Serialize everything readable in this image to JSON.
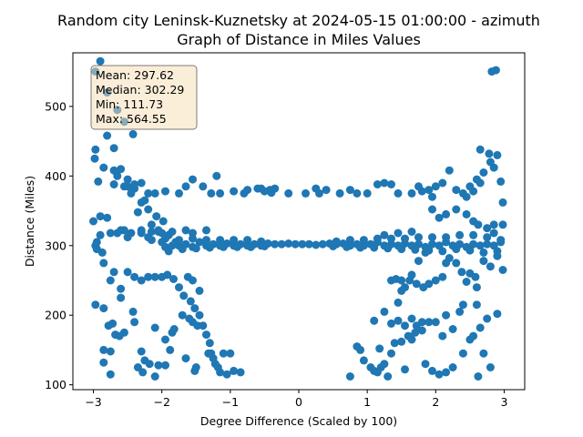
{
  "chart_data": {
    "type": "scatter",
    "title_line1": "Random city Leninsk-Kuznetsky at 2024-05-15 01:00:00  - azimuth",
    "title_line2": "Graph of Distance in Miles Values",
    "xlabel": "Degree Difference (Scaled by 100)",
    "ylabel": "Distance (Miles)",
    "xlim": [
      -3.3,
      3.3
    ],
    "ylim": [
      93,
      577
    ],
    "xticks": [
      -3,
      -2,
      -1,
      0,
      1,
      2,
      3
    ],
    "yticks": [
      100,
      200,
      300,
      400,
      500
    ],
    "grid": false,
    "marker_color": "#1f77b4",
    "stats": {
      "mean": "Mean: 297.62",
      "median": "Median: 302.29",
      "min": "Min: 111.73",
      "max": "Max: 564.55"
    },
    "points": [
      [
        -2.9,
        565
      ],
      [
        -2.97,
        550
      ],
      [
        -2.8,
        520
      ],
      [
        -2.65,
        495
      ],
      [
        -2.55,
        478
      ],
      [
        -2.42,
        460
      ],
      [
        -2.8,
        458
      ],
      [
        -2.7,
        440
      ],
      [
        -2.97,
        438
      ],
      [
        -2.98,
        425
      ],
      [
        -2.85,
        412
      ],
      [
        -2.7,
        408
      ],
      [
        -2.65,
        400
      ],
      [
        -2.93,
        392
      ],
      [
        -2.7,
        388
      ],
      [
        -2.55,
        385
      ],
      [
        -2.45,
        375
      ],
      [
        -2.3,
        362
      ],
      [
        -2.2,
        352
      ],
      [
        -2.08,
        342
      ],
      [
        -1.98,
        335
      ],
      [
        -2.35,
        348
      ],
      [
        -2.15,
        330
      ],
      [
        -2.05,
        322
      ],
      [
        -1.9,
        315
      ],
      [
        -1.8,
        305
      ],
      [
        -2.9,
        342
      ],
      [
        -2.8,
        340
      ],
      [
        -2.65,
        318
      ],
      [
        -2.5,
        312
      ],
      [
        -2.9,
        315
      ],
      [
        -2.95,
        305
      ],
      [
        -3.0,
        335
      ],
      [
        -2.97,
        300
      ],
      [
        -2.95,
        295
      ],
      [
        -2.87,
        290
      ],
      [
        -2.85,
        275
      ],
      [
        -2.7,
        262
      ],
      [
        -2.75,
        250
      ],
      [
        -2.6,
        238
      ],
      [
        -2.6,
        225
      ],
      [
        -2.5,
        262
      ],
      [
        -2.4,
        255
      ],
      [
        -2.3,
        250
      ],
      [
        -2.2,
        255
      ],
      [
        -2.1,
        255
      ],
      [
        -2.0,
        255
      ],
      [
        -1.92,
        258
      ],
      [
        -1.83,
        252
      ],
      [
        -1.75,
        240
      ],
      [
        -1.62,
        255
      ],
      [
        -1.55,
        250
      ],
      [
        -1.68,
        228
      ],
      [
        -1.58,
        220
      ],
      [
        -1.52,
        210
      ],
      [
        -1.45,
        200
      ],
      [
        -1.4,
        185
      ],
      [
        -1.35,
        172
      ],
      [
        -1.3,
        160
      ],
      [
        -1.28,
        145
      ],
      [
        -1.25,
        138
      ],
      [
        -1.22,
        130
      ],
      [
        -1.18,
        125
      ],
      [
        -1.15,
        118
      ],
      [
        -1.45,
        235
      ],
      [
        -1.6,
        195
      ],
      [
        -1.55,
        190
      ],
      [
        -1.48,
        185
      ],
      [
        -1.7,
        200
      ],
      [
        -2.97,
        215
      ],
      [
        -2.85,
        210
      ],
      [
        -2.78,
        185
      ],
      [
        -2.72,
        188
      ],
      [
        -2.68,
        172
      ],
      [
        -2.62,
        170
      ],
      [
        -2.55,
        175
      ],
      [
        -2.4,
        190
      ],
      [
        -2.42,
        205
      ],
      [
        -2.3,
        148
      ],
      [
        -2.25,
        135
      ],
      [
        -2.18,
        130
      ],
      [
        -2.05,
        128
      ],
      [
        -1.95,
        128
      ],
      [
        -2.35,
        125
      ],
      [
        -2.28,
        118
      ],
      [
        -2.1,
        112
      ],
      [
        -1.85,
        175
      ],
      [
        -1.88,
        150
      ],
      [
        -1.65,
        138
      ],
      [
        -1.5,
        125
      ],
      [
        -1.52,
        120
      ],
      [
        -1.32,
        145
      ],
      [
        -1.1,
        145
      ],
      [
        -1.0,
        145
      ],
      [
        -0.95,
        120
      ],
      [
        -0.85,
        118
      ],
      [
        -1.05,
        115
      ],
      [
        -2.85,
        150
      ],
      [
        -2.75,
        148
      ],
      [
        -2.85,
        132
      ],
      [
        -2.75,
        115
      ],
      [
        -2.1,
        182
      ],
      [
        -1.82,
        180
      ],
      [
        -1.95,
        165
      ],
      [
        -2.2,
        375
      ],
      [
        -2.1,
        375
      ],
      [
        -1.95,
        378
      ],
      [
        -1.75,
        375
      ],
      [
        -1.65,
        385
      ],
      [
        -1.55,
        395
      ],
      [
        -1.4,
        385
      ],
      [
        -1.28,
        375
      ],
      [
        -1.15,
        375
      ],
      [
        -0.95,
        378
      ],
      [
        -0.8,
        375
      ],
      [
        -0.75,
        380
      ],
      [
        -0.55,
        382
      ],
      [
        -0.5,
        378
      ],
      [
        -0.42,
        380
      ],
      [
        -0.35,
        382
      ],
      [
        -0.15,
        375
      ],
      [
        -2.5,
        385
      ],
      [
        -2.4,
        388
      ],
      [
        -2.3,
        390
      ],
      [
        -1.2,
        400
      ],
      [
        -1.35,
        322
      ],
      [
        -1.55,
        318
      ],
      [
        -1.65,
        322
      ],
      [
        -1.85,
        320
      ],
      [
        -2.05,
        320
      ],
      [
        -2.3,
        322
      ],
      [
        -2.45,
        318
      ],
      [
        -2.6,
        322
      ],
      [
        -2.75,
        318
      ],
      [
        -2.2,
        312
      ],
      [
        -2.15,
        308
      ],
      [
        -2.0,
        305
      ],
      [
        -1.95,
        298
      ],
      [
        -1.85,
        300
      ],
      [
        -1.75,
        300
      ],
      [
        -1.65,
        302
      ],
      [
        -1.55,
        298
      ],
      [
        -1.45,
        305
      ],
      [
        -1.35,
        300
      ],
      [
        -1.25,
        302
      ],
      [
        -1.15,
        300
      ],
      [
        -1.05,
        303
      ],
      [
        -0.95,
        300
      ],
      [
        -0.85,
        302
      ],
      [
        -0.75,
        300
      ],
      [
        -0.65,
        302
      ],
      [
        -0.55,
        300
      ],
      [
        -0.45,
        303
      ],
      [
        -0.35,
        302
      ],
      [
        -0.25,
        302
      ],
      [
        -0.15,
        303
      ],
      [
        -0.05,
        302
      ],
      [
        0.05,
        302
      ],
      [
        0.15,
        302
      ],
      [
        0.25,
        301
      ],
      [
        0.35,
        302
      ],
      [
        0.45,
        303
      ],
      [
        0.55,
        302
      ],
      [
        0.65,
        303
      ],
      [
        0.75,
        300
      ],
      [
        0.85,
        302
      ],
      [
        0.95,
        300
      ],
      [
        1.05,
        302
      ],
      [
        1.15,
        305
      ],
      [
        1.25,
        300
      ],
      [
        1.35,
        302
      ],
      [
        1.45,
        300
      ],
      [
        1.55,
        303
      ],
      [
        1.65,
        300
      ],
      [
        1.75,
        302
      ],
      [
        1.85,
        298
      ],
      [
        1.95,
        302
      ],
      [
        2.05,
        300
      ],
      [
        2.15,
        305
      ],
      [
        2.25,
        300
      ],
      [
        2.35,
        302
      ],
      [
        2.45,
        298
      ],
      [
        2.55,
        302
      ],
      [
        2.65,
        300
      ],
      [
        2.75,
        302
      ],
      [
        2.85,
        300
      ],
      [
        2.95,
        305
      ],
      [
        -1.9,
        292
      ],
      [
        -1.7,
        295
      ],
      [
        -1.5,
        296
      ],
      [
        -1.3,
        297
      ],
      [
        -1.1,
        298
      ],
      [
        -0.9,
        298
      ],
      [
        -0.7,
        298
      ],
      [
        -0.5,
        299
      ],
      [
        0.5,
        299
      ],
      [
        0.7,
        298
      ],
      [
        0.9,
        297
      ],
      [
        1.1,
        297
      ],
      [
        1.3,
        296
      ],
      [
        1.5,
        295
      ],
      [
        1.7,
        294
      ],
      [
        1.9,
        293
      ],
      [
        2.1,
        292
      ],
      [
        2.3,
        295
      ],
      [
        2.5,
        293
      ],
      [
        2.7,
        290
      ],
      [
        2.9,
        292
      ],
      [
        -1.95,
        310
      ],
      [
        -1.75,
        308
      ],
      [
        -1.55,
        310
      ],
      [
        -1.35,
        308
      ],
      [
        -1.15,
        308
      ],
      [
        -0.95,
        308
      ],
      [
        -0.75,
        308
      ],
      [
        -0.55,
        306
      ],
      [
        0.55,
        306
      ],
      [
        0.75,
        308
      ],
      [
        0.95,
        308
      ],
      [
        1.15,
        310
      ],
      [
        1.35,
        310
      ],
      [
        1.55,
        310
      ],
      [
        1.75,
        312
      ],
      [
        1.95,
        312
      ],
      [
        2.15,
        312
      ],
      [
        2.35,
        315
      ],
      [
        2.55,
        315
      ],
      [
        2.75,
        312
      ],
      [
        2.95,
        308
      ],
      [
        0.25,
        382
      ],
      [
        0.4,
        380
      ],
      [
        0.6,
        375
      ],
      [
        0.75,
        380
      ],
      [
        0.85,
        375
      ],
      [
        1.0,
        375
      ],
      [
        1.15,
        388
      ],
      [
        1.25,
        390
      ],
      [
        1.35,
        388
      ],
      [
        1.45,
        375
      ],
      [
        1.65,
        375
      ],
      [
        1.8,
        378
      ],
      [
        1.9,
        380
      ],
      [
        2.0,
        385
      ],
      [
        2.1,
        390
      ],
      [
        2.2,
        408
      ],
      [
        2.3,
        380
      ],
      [
        2.4,
        375
      ],
      [
        2.55,
        378
      ],
      [
        2.6,
        395
      ],
      [
        2.65,
        390
      ],
      [
        2.7,
        405
      ],
      [
        2.8,
        420
      ],
      [
        2.85,
        412
      ],
      [
        2.9,
        430
      ],
      [
        2.95,
        392
      ],
      [
        2.65,
        438
      ],
      [
        2.78,
        432
      ],
      [
        2.5,
        385
      ],
      [
        2.45,
        370
      ],
      [
        2.98,
        362
      ],
      [
        2.88,
        552
      ],
      [
        2.82,
        550
      ],
      [
        1.45,
        218
      ],
      [
        1.5,
        235
      ],
      [
        1.55,
        240
      ],
      [
        1.65,
        258
      ],
      [
        1.75,
        278
      ],
      [
        1.85,
        290
      ],
      [
        1.35,
        250
      ],
      [
        1.42,
        252
      ],
      [
        1.5,
        250
      ],
      [
        1.62,
        250
      ],
      [
        1.72,
        245
      ],
      [
        1.82,
        240
      ],
      [
        1.9,
        245
      ],
      [
        2.0,
        250
      ],
      [
        2.1,
        255
      ],
      [
        2.15,
        275
      ],
      [
        2.2,
        282
      ],
      [
        2.3,
        275
      ],
      [
        2.38,
        262
      ],
      [
        2.45,
        248
      ],
      [
        2.5,
        260
      ],
      [
        2.58,
        255
      ],
      [
        2.6,
        240
      ],
      [
        2.7,
        278
      ],
      [
        2.8,
        270
      ],
      [
        2.9,
        285
      ],
      [
        2.98,
        265
      ],
      [
        1.1,
        192
      ],
      [
        1.25,
        205
      ],
      [
        1.35,
        188
      ],
      [
        1.45,
        192
      ],
      [
        1.55,
        185
      ],
      [
        1.65,
        195
      ],
      [
        1.72,
        185
      ],
      [
        1.8,
        190
      ],
      [
        1.9,
        190
      ],
      [
        2.0,
        190
      ],
      [
        2.15,
        200
      ],
      [
        2.25,
        180
      ],
      [
        2.35,
        205
      ],
      [
        2.4,
        215
      ],
      [
        2.6,
        215
      ],
      [
        2.65,
        182
      ],
      [
        2.75,
        195
      ],
      [
        2.9,
        202
      ],
      [
        0.75,
        112
      ],
      [
        0.9,
        150
      ],
      [
        0.95,
        135
      ],
      [
        1.05,
        125
      ],
      [
        1.1,
        120
      ],
      [
        1.15,
        118
      ],
      [
        1.2,
        125
      ],
      [
        1.25,
        130
      ],
      [
        1.35,
        145
      ],
      [
        1.4,
        160
      ],
      [
        1.5,
        162
      ],
      [
        1.6,
        170
      ],
      [
        1.65,
        165
      ],
      [
        1.7,
        175
      ],
      [
        1.8,
        178
      ],
      [
        1.85,
        130
      ],
      [
        1.95,
        120
      ],
      [
        2.05,
        115
      ],
      [
        2.15,
        118
      ],
      [
        2.25,
        125
      ],
      [
        2.4,
        145
      ],
      [
        2.5,
        165
      ],
      [
        2.55,
        170
      ],
      [
        2.7,
        145
      ],
      [
        2.8,
        125
      ],
      [
        2.62,
        112
      ],
      [
        1.3,
        112
      ],
      [
        1.18,
        152
      ],
      [
        1.55,
        122
      ],
      [
        2.1,
        170
      ],
      [
        0.85,
        155
      ],
      [
        -0.6,
        382
      ],
      [
        -0.4,
        376
      ],
      [
        0.1,
        375
      ],
      [
        0.3,
        375
      ],
      [
        1.75,
        385
      ],
      [
        1.95,
        370
      ],
      [
        -2.6,
        410
      ],
      [
        -2.5,
        395
      ],
      [
        -2.4,
        382
      ],
      [
        -2.25,
        365
      ],
      [
        2.3,
        352
      ],
      [
        2.45,
        345
      ],
      [
        2.55,
        335
      ],
      [
        2.62,
        330
      ],
      [
        2.75,
        325
      ],
      [
        2.85,
        330
      ],
      [
        2.98,
        330
      ],
      [
        2.05,
        340
      ],
      [
        2.15,
        345
      ],
      [
        1.95,
        352
      ],
      [
        2.85,
        318
      ],
      [
        1.65,
        320
      ],
      [
        1.45,
        318
      ],
      [
        1.25,
        315
      ],
      [
        -2.55,
        322
      ],
      [
        -2.3,
        318
      ],
      [
        -2.15,
        320
      ],
      [
        -2.0,
        318
      ]
    ]
  }
}
